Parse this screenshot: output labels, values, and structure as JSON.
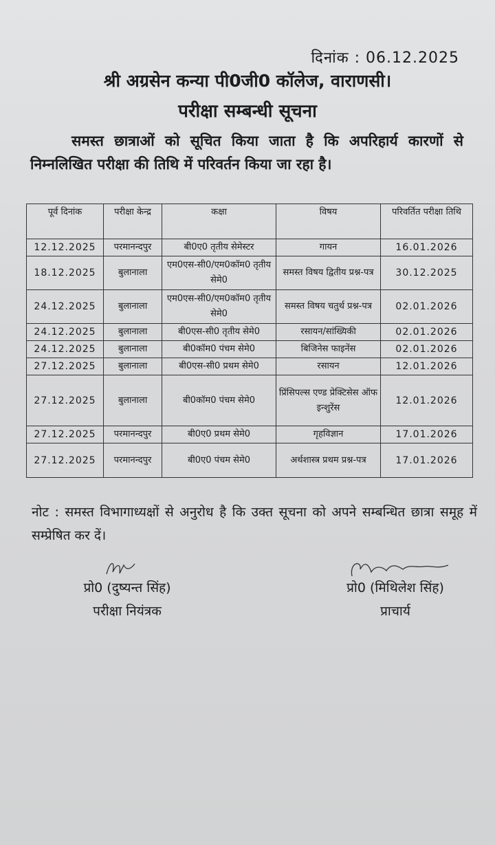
{
  "date_line": "दिनांक : 06.12.2025",
  "college": "श्री अग्रसेन कन्या पी0जी0 कॉलेज, वाराणसी।",
  "subject": "परीक्षा सम्बन्धी सूचना",
  "intro": "समस्त छात्राओं को सूचित किया जाता है कि अपरिहार्य कारणों से निम्नलिखित परीक्षा की तिथि में परिवर्तन किया जा रहा है।",
  "table": {
    "headers": [
      "पूर्व दिनांक",
      "परीक्षा केन्द्र",
      "कक्षा",
      "विषय",
      "परिवर्तित परीक्षा तिथि"
    ],
    "rows": [
      [
        "12.12.2025",
        "परमानन्दपुर",
        "बी0ए0 तृतीय सेमेस्टर",
        "गायन",
        "16.01.2026"
      ],
      [
        "18.12.2025",
        "बुलानाला",
        "एम0एस-सी0/एम0कॉम0 तृतीय सेमे0",
        "समस्त विषय द्वितीय प्रश्न-पत्र",
        "30.12.2025"
      ],
      [
        "24.12.2025",
        "बुलानाला",
        "एम0एस-सी0/एम0कॉम0 तृतीय सेमे0",
        "समस्त विषय चतुर्थ प्रश्न-पत्र",
        "02.01.2026"
      ],
      [
        "24.12.2025",
        "बुलानाला",
        "बी0एस-सी0 तृतीय सेमे0",
        "रसायन/सांख्यिकी",
        "02.01.2026"
      ],
      [
        "24.12.2025",
        "बुलानाला",
        "बी0कॉम0 पंचम सेमे0",
        "बिजिनेस फाइनेंस",
        "02.01.2026"
      ],
      [
        "27.12.2025",
        "बुलानाला",
        "बी0एस-सी0 प्रथम सेमे0",
        "रसायन",
        "12.01.2026"
      ],
      [
        "27.12.2025",
        "बुलानाला",
        "बी0कॉम0 पंचम सेमे0",
        "प्रिंसिपल्स एण्ड प्रेक्टिसेस ऑफ इन्शुरेंस",
        "12.01.2026"
      ],
      [
        "27.12.2025",
        "परमानन्दपुर",
        "बी0ए0 प्रथम सेमे0",
        "गृहविज्ञान",
        "17.01.2026"
      ],
      [
        "27.12.2025",
        "परमानन्दपुर",
        "बी0ए0 पंचम सेमे0",
        "अर्थशास्त्र प्रथम प्रश्न-पत्र",
        "17.01.2026"
      ]
    ]
  },
  "note": "नोट : समस्त विभागाध्यक्षों से अनुरोध है कि उक्त सूचना को अपने सम्बन्धित छात्रा समूह में सम्प्रेषित कर दें।",
  "signatories": [
    {
      "name": "प्रो0 (दुष्यन्त सिंह)",
      "designation": "परीक्षा नियंत्रक"
    },
    {
      "name": "प्रो0 (मिथिलेश सिंह)",
      "designation": "प्राचार्य"
    }
  ]
}
